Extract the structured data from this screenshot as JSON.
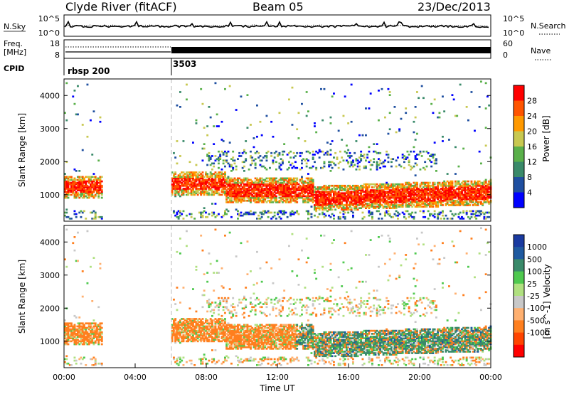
{
  "header": {
    "station": "Clyde River (fitACF)",
    "beam": "Beam 05",
    "date": "23/Dec/2013"
  },
  "nsky_panel": {
    "left_label": "N.Sky",
    "left_ticks": [
      "10^5",
      "10^0"
    ],
    "right_ticks": [
      "10^5",
      "10^0"
    ],
    "right_label": "N.Search"
  },
  "freq_panel": {
    "left_label_1": "Freq.",
    "left_label_2": "[MHz]",
    "left_ticks": [
      "18",
      "8"
    ],
    "right_ticks": [
      "60",
      "0"
    ],
    "right_label": "Nave"
  },
  "cpid_panel": {
    "label": "CPID",
    "entries": [
      "rbsp 200",
      "3503"
    ]
  },
  "colors": {
    "power_scale": [
      "#0000ff",
      "#1f4fa0",
      "#3a8a6a",
      "#5ab04a",
      "#c8c850",
      "#ff9900",
      "#ff5500",
      "#ff0000"
    ],
    "velocity_scale": [
      "#ff0000",
      "#ff4400",
      "#ff7f1e",
      "#ffb070",
      "#c8c8c8",
      "#b0e080",
      "#4fc94f",
      "#3a8a6a",
      "#1f5aa0",
      "#1a3aa0"
    ]
  },
  "chart_data": [
    {
      "type": "heatmap",
      "name": "power_panel",
      "ylabel": "Slant Range [km]",
      "ylim": [
        200,
        4500
      ],
      "yticks": [
        "1000",
        "2000",
        "3000",
        "4000"
      ],
      "xlim": [
        0,
        24
      ],
      "colorbar_label": "Power [dB]",
      "colorbar_ticks": [
        "4",
        "8",
        "12",
        "16",
        "20",
        "24",
        "28"
      ],
      "gap_hours": [
        2.1,
        6.0
      ],
      "cpid_change_hour": 6.0
    },
    {
      "type": "heatmap",
      "name": "velocity_panel",
      "ylabel": "Slant Range [km]",
      "ylim": [
        200,
        4500
      ],
      "yticks": [
        "1000",
        "2000",
        "3000",
        "4000"
      ],
      "xlim": [
        0,
        24
      ],
      "colorbar_label": "Velocity",
      "colorbar_unit": "[m s^-1]",
      "colorbar_ticks": [
        "1000",
        "500",
        "100",
        "25",
        "-25",
        "-100",
        "-500",
        "-1000"
      ],
      "xticks": [
        "00:00",
        "04:00",
        "08:00",
        "12:00",
        "16:00",
        "20:00",
        "00:00"
      ],
      "xlabel": "Time UT"
    }
  ]
}
